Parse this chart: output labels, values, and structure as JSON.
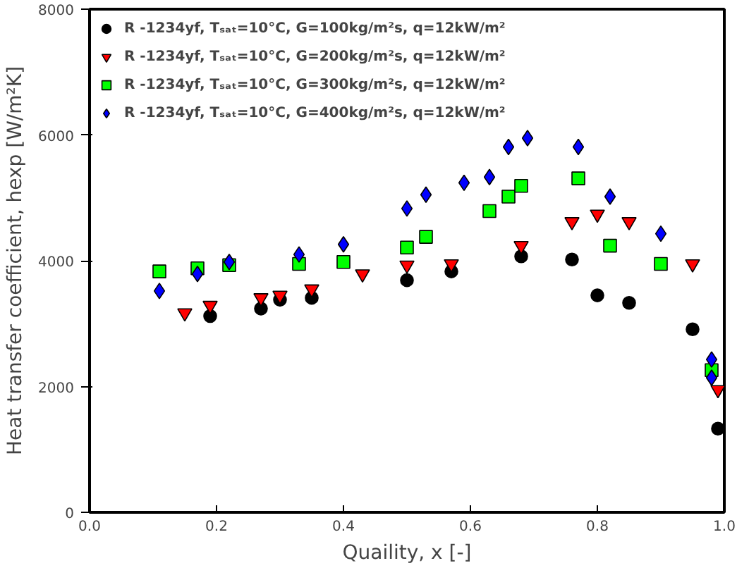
{
  "chart_data": {
    "type": "scatter",
    "xlabel": "Quaility, x [-]",
    "ylabel": "Heat transfer coefficient, hexp [W/m²K]",
    "xlim": [
      0,
      1
    ],
    "xticks": [
      {
        "value": 0,
        "label": "0.0"
      },
      0.2,
      0.4,
      0.6,
      0.8,
      {
        "value": 1,
        "label": "1.0"
      }
    ],
    "ylim": [
      0,
      8000
    ],
    "yticks": [
      0,
      2000,
      4000,
      6000,
      8000
    ],
    "grid": false,
    "legend": "top left",
    "series": [
      {
        "name": "R -1234yf, Tₛₐₜ=10°C, G=100kg/m²s, q=12kW/m²",
        "color": "#000000",
        "marker": "circle",
        "x": [
          0.19,
          0.27,
          0.3,
          0.35,
          0.5,
          0.57,
          0.68,
          0.76,
          0.8,
          0.85,
          0.95,
          0.99
        ],
        "values": [
          3120,
          3240,
          3380,
          3410,
          3690,
          3830,
          4070,
          4020,
          3450,
          3330,
          2910,
          1330
        ]
      },
      {
        "name": "R -1234yf, Tₛₐₜ=10°C, G=200kg/m²s, q=12kW/m²",
        "color": "#ff0000",
        "marker": "triangle",
        "x": [
          0.15,
          0.19,
          0.27,
          0.3,
          0.35,
          0.43,
          0.5,
          0.57,
          0.68,
          0.76,
          0.8,
          0.85,
          0.95,
          0.99
        ],
        "values": [
          3170,
          3290,
          3410,
          3450,
          3550,
          3790,
          3930,
          3950,
          4240,
          4620,
          4740,
          4620,
          3950,
          1950
        ]
      },
      {
        "name": "R -1234yf, Tₛₐₜ=10°C, G=300kg/m²s, q=12kW/m²",
        "color": "#00ff00",
        "marker": "square",
        "x": [
          0.11,
          0.17,
          0.22,
          0.33,
          0.4,
          0.5,
          0.53,
          0.63,
          0.66,
          0.68,
          0.77,
          0.82,
          0.9,
          0.98
        ],
        "values": [
          3830,
          3880,
          3930,
          3950,
          3980,
          4210,
          4380,
          4790,
          5020,
          5190,
          5310,
          4240,
          3950,
          2260
        ]
      },
      {
        "name": "R -1234yf, Tₛₐₜ=10°C, G=400kg/m²s, q=12kW/m²",
        "color": "#0000ff",
        "marker": "diamond",
        "x": [
          0.11,
          0.17,
          0.22,
          0.33,
          0.4,
          0.5,
          0.53,
          0.59,
          0.63,
          0.66,
          0.69,
          0.77,
          0.82,
          0.9,
          0.98,
          0.98
        ],
        "values": [
          3520,
          3790,
          3980,
          4100,
          4260,
          4830,
          5050,
          5240,
          5330,
          5810,
          5950,
          5810,
          5020,
          4430,
          2430,
          2140
        ]
      }
    ]
  }
}
